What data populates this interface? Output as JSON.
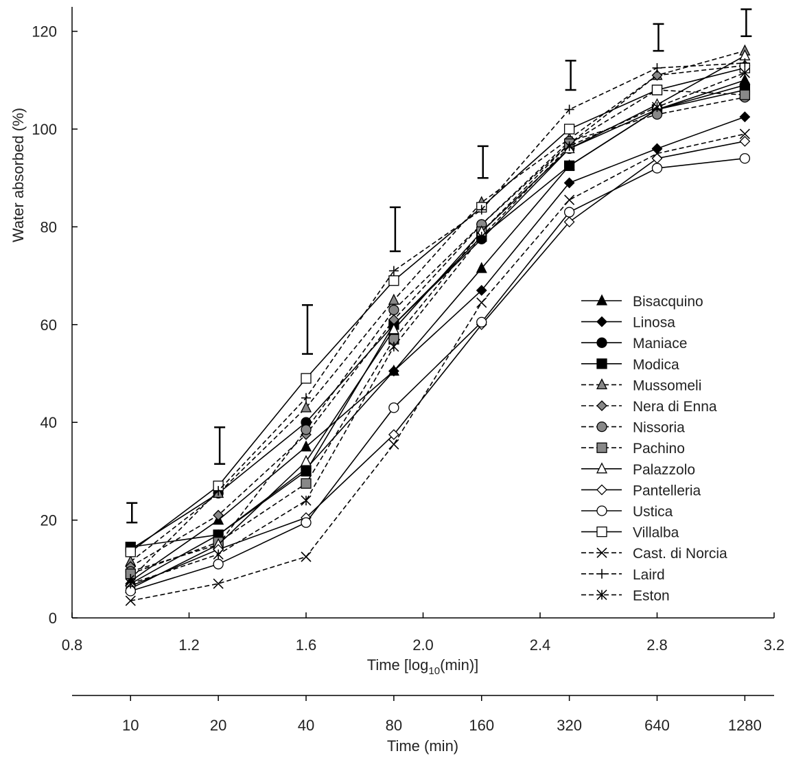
{
  "chart_data": {
    "type": "line",
    "title": "",
    "xlabel": "Time [log10(min)]",
    "xlabel_main": "Time [log",
    "xlabel_sub": "10",
    "xlabel_tail": "(min)]",
    "xlabel_secondary": "Time (min)",
    "ylabel": "Water absorbed (%)",
    "xlim": [
      0.8,
      3.2
    ],
    "ylim": [
      0,
      125
    ],
    "xticks": [
      "0.8",
      "1.2",
      "1.6",
      "2.0",
      "2.4",
      "2.8",
      "3.2"
    ],
    "xtick_values": [
      0.8,
      1.2,
      1.6,
      2.0,
      2.4,
      2.8,
      3.2
    ],
    "yticks": [
      "0",
      "20",
      "40",
      "60",
      "80",
      "100",
      "120"
    ],
    "ytick_values": [
      0,
      20,
      40,
      60,
      80,
      100,
      120
    ],
    "secondary_xticks": [
      "10",
      "20",
      "40",
      "80",
      "160",
      "320",
      "640",
      "1280"
    ],
    "grid": false,
    "legend_position": "lower-right",
    "x": [
      1.0,
      1.3,
      1.6,
      1.9,
      2.2,
      2.5,
      2.8,
      3.1
    ],
    "error_bars": [
      {
        "x": 1.0,
        "low": 19.5,
        "high": 23.5
      },
      {
        "x": 1.3,
        "low": 31.5,
        "high": 39.0
      },
      {
        "x": 1.6,
        "low": 54.0,
        "high": 64.0
      },
      {
        "x": 1.9,
        "low": 75.0,
        "high": 84.0
      },
      {
        "x": 2.2,
        "low": 90.0,
        "high": 96.5
      },
      {
        "x": 2.5,
        "low": 108.0,
        "high": 114.0
      },
      {
        "x": 2.8,
        "low": 116.0,
        "high": 121.5
      },
      {
        "x": 3.1,
        "low": 119.0,
        "high": 124.5
      }
    ],
    "series": [
      {
        "name": "Bisacquino",
        "marker": "triangle",
        "fill": "#000000",
        "dash": "solid",
        "values": [
          7.5,
          20,
          35,
          50.5,
          71.5,
          92.5,
          104,
          110
        ]
      },
      {
        "name": "Linosa",
        "marker": "diamond",
        "fill": "#000000",
        "dash": "solid",
        "values": [
          7,
          17,
          30.5,
          50.5,
          67,
          89,
          96,
          102.5
        ]
      },
      {
        "name": "Maniace",
        "marker": "circle",
        "fill": "#000000",
        "dash": "solid",
        "values": [
          14,
          25.5,
          40,
          60,
          77.5,
          96,
          104,
          109
        ]
      },
      {
        "name": "Modica",
        "marker": "square",
        "fill": "#000000",
        "dash": "solid",
        "values": [
          14.5,
          17,
          30,
          60,
          78,
          92.5,
          104,
          108
        ]
      },
      {
        "name": "Mussomeli",
        "marker": "triangle",
        "fill": "#888888",
        "dash": "dashed",
        "values": [
          11.5,
          25.5,
          43,
          65,
          85,
          98,
          111,
          116
        ]
      },
      {
        "name": "Nera di Enna",
        "marker": "diamond",
        "fill": "#888888",
        "dash": "dashed",
        "values": [
          10.5,
          21,
          37.5,
          61,
          80.5,
          97,
          111,
          113
        ]
      },
      {
        "name": "Nissoria",
        "marker": "circle",
        "fill": "#888888",
        "dash": "dashed",
        "values": [
          9.5,
          15,
          38.5,
          63,
          80.5,
          97.5,
          103,
          106.5
        ]
      },
      {
        "name": "Pachino",
        "marker": "square",
        "fill": "#888888",
        "dash": "dashed",
        "values": [
          9,
          15.5,
          27.5,
          57,
          79,
          97,
          108,
          107
        ]
      },
      {
        "name": "Palazzolo",
        "marker": "triangle",
        "fill": "#ffffff",
        "dash": "solid",
        "values": [
          6,
          15,
          32,
          59,
          79,
          96,
          105,
          115
        ]
      },
      {
        "name": "Pantelleria",
        "marker": "diamond",
        "fill": "#ffffff",
        "dash": "solid",
        "values": [
          6.5,
          14,
          20.5,
          37.5,
          60,
          81,
          94,
          97.5
        ]
      },
      {
        "name": "Ustica",
        "marker": "circle",
        "fill": "#ffffff",
        "dash": "solid",
        "values": [
          5.5,
          11,
          19.5,
          43,
          60.5,
          83,
          92,
          94
        ]
      },
      {
        "name": "Villalba",
        "marker": "square",
        "fill": "#ffffff",
        "dash": "solid",
        "values": [
          13.5,
          27,
          49,
          69,
          84,
          100,
          108,
          112.5
        ]
      },
      {
        "name": "Cast. di Norcia",
        "marker": "x",
        "fill": "#000000",
        "dash": "dashed",
        "values": [
          3.5,
          7,
          12.5,
          35.5,
          64.5,
          85.5,
          95,
          99
        ]
      },
      {
        "name": "Laird",
        "marker": "plus",
        "fill": "#000000",
        "dash": "dashed",
        "values": [
          8,
          26,
          45,
          71,
          83.5,
          104,
          112.5,
          113.5
        ]
      },
      {
        "name": "Eston",
        "marker": "asterisk",
        "fill": "#000000",
        "dash": "dashed",
        "values": [
          7,
          13,
          24,
          55.5,
          78,
          96.5,
          104.5,
          111.5
        ]
      }
    ]
  }
}
